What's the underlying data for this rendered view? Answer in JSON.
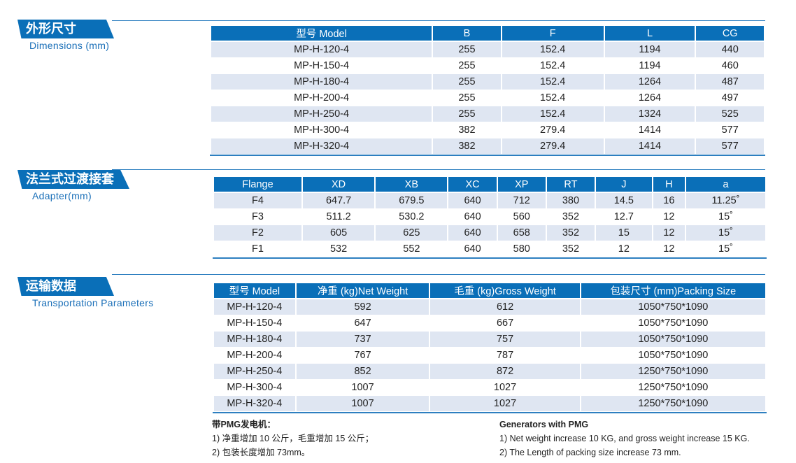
{
  "sections": {
    "dimensions": {
      "title": "外形尺寸",
      "subtitle": "Dimensions (mm)",
      "headers": [
        "型号 Model",
        "B",
        "F",
        "L",
        "CG"
      ],
      "rows": [
        [
          "MP-H-120-4",
          "255",
          "152.4",
          "1194",
          "440"
        ],
        [
          "MP-H-150-4",
          "255",
          "152.4",
          "1194",
          "460"
        ],
        [
          "MP-H-180-4",
          "255",
          "152.4",
          "1264",
          "487"
        ],
        [
          "MP-H-200-4",
          "255",
          "152.4",
          "1264",
          "497"
        ],
        [
          "MP-H-250-4",
          "255",
          "152.4",
          "1324",
          "525"
        ],
        [
          "MP-H-300-4",
          "382",
          "279.4",
          "1414",
          "577"
        ],
        [
          "MP-H-320-4",
          "382",
          "279.4",
          "1414",
          "577"
        ]
      ]
    },
    "adapter": {
      "title": "法兰式过渡接套",
      "subtitle": "Adapter(mm)",
      "headers": [
        "Flange",
        "XD",
        "XB",
        "XC",
        "XP",
        "RT",
        "J",
        "H",
        "a"
      ],
      "rows": [
        [
          "F4",
          "647.7",
          "679.5",
          "640",
          "712",
          "380",
          "14.5",
          "16",
          "11.25˚"
        ],
        [
          "F3",
          "511.2",
          "530.2",
          "640",
          "560",
          "352",
          "12.7",
          "12",
          "15˚"
        ],
        [
          "F2",
          "605",
          "625",
          "640",
          "658",
          "352",
          "15",
          "12",
          "15˚"
        ],
        [
          "F1",
          "532",
          "552",
          "640",
          "580",
          "352",
          "12",
          "12",
          "15˚"
        ]
      ]
    },
    "transport": {
      "title": "运输数据",
      "subtitle": "Transportation Parameters",
      "headers": [
        "型号 Model",
        "净重 (kg)Net Weight",
        "毛重 (kg)Gross Weight",
        "包装尺寸 (mm)Packing Size"
      ],
      "rows": [
        [
          "MP-H-120-4",
          "592",
          "612",
          "1050*750*1090"
        ],
        [
          "MP-H-150-4",
          "647",
          "667",
          "1050*750*1090"
        ],
        [
          "MP-H-180-4",
          "737",
          "757",
          "1050*750*1090"
        ],
        [
          "MP-H-200-4",
          "767",
          "787",
          "1050*750*1090"
        ],
        [
          "MP-H-250-4",
          "852",
          "872",
          "1250*750*1090"
        ],
        [
          "MP-H-300-4",
          "1007",
          "1027",
          "1250*750*1090"
        ],
        [
          "MP-H-320-4",
          "1007",
          "1027",
          "1250*750*1090"
        ]
      ]
    }
  },
  "notes": {
    "cn": {
      "title": "带PMG发电机：",
      "lines": [
        "1) 净重增加 10 公斤，毛重增加 15 公斤；",
        "2) 包装长度增加 73mm。"
      ]
    },
    "en": {
      "title": "Generators with PMG",
      "lines": [
        "1) Net weight increase 10 KG, and gross weight increase 15 KG.",
        "2) The Length of packing size increase 73 mm."
      ]
    }
  },
  "colors": {
    "header": "#0a6fb8",
    "stripe": "#dfe6f2"
  }
}
